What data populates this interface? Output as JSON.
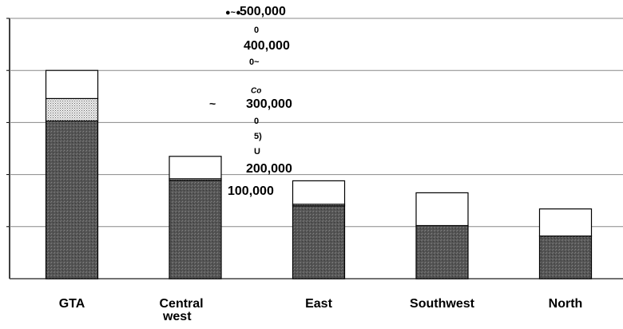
{
  "chart_data": {
    "type": "stacked_bar",
    "categories": [
      "GTA",
      "Central west",
      "East",
      "Southwest",
      "North"
    ],
    "series": [
      {
        "color": "#555555",
        "values": [
          303000,
          189000,
          140000,
          102000,
          82000
        ]
      },
      {
        "color": "#cccccc",
        "values": [
          43000,
          3000,
          3000,
          0,
          0
        ]
      },
      {
        "color": "#ffffff",
        "values": [
          54000,
          43000,
          45000,
          63000,
          52000
        ]
      }
    ],
    "ylim": [
      0,
      500000
    ],
    "yticks": [
      {
        "value": 100000,
        "label": "100,000"
      },
      {
        "value": 200000,
        "label": "200,000"
      },
      {
        "value": 300000,
        "label": "300,000"
      },
      {
        "value": 400000,
        "label": "400,000"
      },
      {
        "value": 500000,
        "label": "500,000"
      }
    ],
    "grid": true,
    "annotations": [
      "●~●",
      "0",
      "0~",
      "Co",
      "~",
      "0",
      "5)",
      "U",
      "~"
    ]
  }
}
